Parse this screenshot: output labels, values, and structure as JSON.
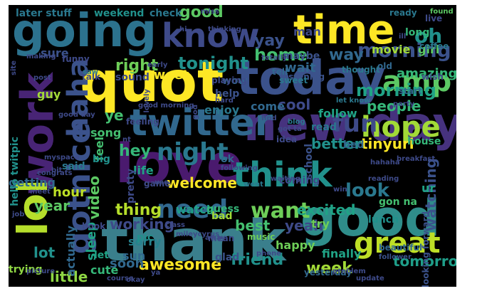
{
  "words": [
    {
      "text": "thank",
      "color": "#3a7f8c"
    },
    {
      "text": "good",
      "color": "#2f8d8a"
    },
    {
      "text": "love",
      "color": "#4a1a6e"
    },
    {
      "text": "new day",
      "color": "#46327e"
    },
    {
      "text": "today",
      "color": "#3b528b"
    },
    {
      "text": "quot",
      "color": "#fde725"
    },
    {
      "text": "going",
      "color": "#2c728e"
    },
    {
      "text": "time",
      "color": "#fde725"
    },
    {
      "text": "work",
      "color": "#482475"
    },
    {
      "text": "twitter",
      "color": "#31688e"
    },
    {
      "text": "know",
      "color": "#3e4a89"
    },
    {
      "text": "lol",
      "color": "#b5de2b"
    },
    {
      "text": "haha",
      "color": "#3b528b"
    },
    {
      "text": "gotnice",
      "color": "#3b528b"
    },
    {
      "text": "think",
      "color": "#21918c"
    },
    {
      "text": "great",
      "color": "#bddf26"
    },
    {
      "text": "hope",
      "color": "#a2da37"
    },
    {
      "text": "amp",
      "color": "#5cc863"
    },
    {
      "text": "fun",
      "color": "#3e4a89"
    },
    {
      "text": "need",
      "color": "#31688e"
    },
    {
      "text": "night",
      "color": "#2a788e"
    },
    {
      "text": "morning",
      "color": "#3b528b"
    },
    {
      "text": "morning",
      "color": "#20a386"
    },
    {
      "text": "oh",
      "color": "#21918c"
    },
    {
      "text": "home",
      "color": "#44bf70"
    },
    {
      "text": "want",
      "color": "#6ece58"
    },
    {
      "text": "look",
      "color": "#2a788e"
    },
    {
      "text": "good",
      "color": "#5cc863"
    },
    {
      "text": "tonight",
      "color": "#21918c"
    },
    {
      "text": "yay",
      "color": "#3b528b"
    },
    {
      "text": "way",
      "color": "#31688e"
    },
    {
      "text": "right",
      "color": "#6ece58"
    },
    {
      "text": "tweet",
      "color": "#fde725"
    },
    {
      "text": "wait",
      "color": "#31688e"
    },
    {
      "text": "amazing",
      "color": "#35b779"
    },
    {
      "text": "people",
      "color": "#35b779"
    },
    {
      "text": "follow",
      "color": "#20a386"
    },
    {
      "text": "cool",
      "color": "#3e4a89"
    },
    {
      "text": "come",
      "color": "#31688e"
    },
    {
      "text": "better",
      "color": "#21918c"
    },
    {
      "text": "tinyurl",
      "color": "#fde725"
    },
    {
      "text": "hey",
      "color": "#35b779"
    },
    {
      "text": "ye",
      "color": "#44bf70"
    },
    {
      "text": "welcome",
      "color": "#fde725"
    },
    {
      "text": "life",
      "color": "#20a386"
    },
    {
      "text": "video",
      "color": "#5cc863"
    },
    {
      "text": "thing",
      "color": "#b5de2b"
    },
    {
      "text": "working",
      "color": "#3e4a89"
    },
    {
      "text": "best",
      "color": "#44bf70"
    },
    {
      "text": "yeah",
      "color": "#3e4a89"
    },
    {
      "text": "excited",
      "color": "#20a386"
    },
    {
      "text": "week",
      "color": "#a2da37"
    },
    {
      "text": "tomorrow",
      "color": "#1f9e89"
    },
    {
      "text": "watching",
      "color": "#3b528b"
    },
    {
      "text": "friend",
      "color": "#21918c"
    },
    {
      "text": "awesome",
      "color": "#fde725"
    },
    {
      "text": "soon",
      "color": "#31688e"
    },
    {
      "text": "little",
      "color": "#8fd744"
    },
    {
      "text": "cute",
      "color": "#35b779"
    },
    {
      "text": "year",
      "color": "#5cc863"
    },
    {
      "text": "lot",
      "color": "#21918c"
    },
    {
      "text": "hour",
      "color": "#bddf26"
    },
    {
      "text": "getting",
      "color": "#31688e"
    },
    {
      "text": "sleep",
      "color": "#20a386"
    },
    {
      "text": "sorry",
      "color": "#26828e"
    },
    {
      "text": "sun",
      "color": "#31688e"
    },
    {
      "text": "watch",
      "color": "#1f9e89"
    },
    {
      "text": "pic",
      "color": "#21918c"
    },
    {
      "text": "later stuff",
      "color": "#2a788e"
    },
    {
      "text": "weekend",
      "color": "#21918c"
    },
    {
      "text": "check",
      "color": "#2a788e"
    },
    {
      "text": "movie",
      "color": "#a2da37"
    },
    {
      "text": "long",
      "color": "#35b779"
    },
    {
      "text": "girl",
      "color": "#5cc863"
    },
    {
      "text": "man",
      "color": "#3e4a89"
    },
    {
      "text": "sure",
      "color": "#3b528b"
    },
    {
      "text": "guy",
      "color": "#a2da37"
    },
    {
      "text": "enjoy",
      "color": "#2a788e"
    },
    {
      "text": "help",
      "color": "#3b528b"
    },
    {
      "text": "wow",
      "color": "#31688e"
    },
    {
      "text": "bad",
      "color": "#a2da37"
    },
    {
      "text": "ok",
      "color": "#31688e"
    },
    {
      "text": "gon na",
      "color": "#44bf70"
    },
    {
      "text": "ur",
      "color": "#20a386"
    },
    {
      "text": "happy",
      "color": "#6ece58"
    },
    {
      "text": "try",
      "color": "#6ece58"
    },
    {
      "text": "finally",
      "color": "#20a386"
    },
    {
      "text": "actually",
      "color": "#31688e"
    },
    {
      "text": "trying",
      "color": "#8fd744"
    },
    {
      "text": "coffee",
      "color": "#2a788e"
    },
    {
      "text": "house",
      "color": "#35b779"
    },
    {
      "text": "ready",
      "color": "#2a788e"
    },
    {
      "text": "lunch",
      "color": "#21918c"
    },
    {
      "text": "bed",
      "color": "#31688e"
    },
    {
      "text": "song",
      "color": "#44bf70"
    },
    {
      "text": "feel",
      "color": "#44bf70"
    },
    {
      "text": "big",
      "color": "#21918c"
    },
    {
      "text": "hello twitpic",
      "color": "#21918c"
    },
    {
      "text": "school",
      "color": "#3b528b"
    },
    {
      "text": "guess",
      "color": "#35b779"
    },
    {
      "text": "music",
      "color": "#6ece58"
    },
    {
      "text": "glad",
      "color": "#3b528b"
    },
    {
      "text": "let",
      "color": "#20a386"
    },
    {
      "text": "pretty",
      "color": "#3e4a89"
    },
    {
      "text": "wish",
      "color": "#3e4a89"
    },
    {
      "text": "start",
      "color": "#31688e"
    },
    {
      "text": "looking forward",
      "color": "#3b528b"
    },
    {
      "text": "yesterday",
      "color": "#31688e"
    },
    {
      "text": "beautiful",
      "color": "#31688e"
    },
    {
      "text": "follower",
      "color": "#3b528b"
    },
    {
      "text": "maybe",
      "color": "#3b528b"
    },
    {
      "text": "listening",
      "color": "#3b528b"
    },
    {
      "text": "sound",
      "color": "#3e4a89"
    },
    {
      "text": "game",
      "color": "#3e4a89"
    },
    {
      "text": "mean",
      "color": "#3e4a89"
    },
    {
      "text": "book",
      "color": "#3e4a89"
    },
    {
      "text": "idea",
      "color": "#3e4a89"
    },
    {
      "text": "read",
      "color": "#2a788e"
    },
    {
      "text": "coming",
      "color": "#3e4a89"
    },
    {
      "text": "live",
      "color": "#3e4a89"
    },
    {
      "text": "found",
      "color": "#5cc863"
    },
    {
      "text": "funny",
      "color": "#3e4a89"
    },
    {
      "text": "thought",
      "color": "#2a788e"
    },
    {
      "text": "old",
      "color": "#31688e"
    },
    {
      "text": "tell",
      "color": "#31688e"
    },
    {
      "text": "talk",
      "color": "#3e4a89"
    },
    {
      "text": "saw",
      "color": "#2a788e"
    },
    {
      "text": "let know",
      "color": "#2a788e"
    },
    {
      "text": "party",
      "color": "#3e4a89"
    },
    {
      "text": "playing",
      "color": "#3e4a89"
    },
    {
      "text": "sweet",
      "color": "#2a788e"
    },
    {
      "text": "hard",
      "color": "#3e4a89"
    },
    {
      "text": "feeling",
      "color": "#3e4a89"
    },
    {
      "text": "find",
      "color": "#3e4a89"
    },
    {
      "text": "blog",
      "color": "#2a788e"
    },
    {
      "text": "waiting",
      "color": "#3e4a89"
    },
    {
      "text": "win",
      "color": "#3e4a89"
    },
    {
      "text": "went",
      "color": "#2a788e"
    },
    {
      "text": "use",
      "color": "#3e4a89"
    },
    {
      "text": "class",
      "color": "#3e4a89"
    },
    {
      "text": "nt",
      "color": "#3e4a89"
    },
    {
      "text": "said",
      "color": "#2a788e"
    },
    {
      "text": "job",
      "color": "#3e4a89"
    },
    {
      "text": "phone",
      "color": "#3e4a89"
    },
    {
      "text": "update",
      "color": "#3e4a89"
    },
    {
      "text": "ya",
      "color": "#3e4a89"
    },
    {
      "text": "miss",
      "color": "#3e4a89"
    },
    {
      "text": "making",
      "color": "#3e4a89"
    },
    {
      "text": "thinking",
      "color": "#3e4a89"
    },
    {
      "text": "hi",
      "color": "#3e4a89"
    },
    {
      "text": "lovely",
      "color": "#3e4a89"
    },
    {
      "text": "post",
      "color": "#3e4a89"
    },
    {
      "text": "reading",
      "color": "#3e4a89"
    },
    {
      "text": "hahaha",
      "color": "#3e4a89"
    },
    {
      "text": "following",
      "color": "#3e4a89"
    },
    {
      "text": "picture",
      "color": "#3e4a89"
    },
    {
      "text": "bit",
      "color": "#3e4a89"
    },
    {
      "text": "meet",
      "color": "#3e4a89"
    },
    {
      "text": "away",
      "color": "#3e4a89"
    },
    {
      "text": "mileycyrus",
      "color": "#3e4a89"
    },
    {
      "text": "course",
      "color": "#3e4a89"
    },
    {
      "text": "okay",
      "color": "#3e4a89"
    },
    {
      "text": "problem",
      "color": "#3e4a89"
    },
    {
      "text": "totally",
      "color": "#3e4a89"
    },
    {
      "text": "early",
      "color": "#3e4a89"
    },
    {
      "text": "site",
      "color": "#3e4a89"
    },
    {
      "text": "myspace",
      "color": "#3e4a89"
    },
    {
      "text": "congrats",
      "color": "#3e4a89"
    },
    {
      "text": "god",
      "color": "#3e4a89"
    },
    {
      "text": "got ta",
      "color": "#3e4a89"
    },
    {
      "text": "good morning",
      "color": "#3e4a89"
    },
    {
      "text": "good day",
      "color": "#3e4a89"
    },
    {
      "text": "breakfast",
      "color": "#3e4a89"
    },
    {
      "text": "ill",
      "color": "#3e4a89"
    }
  ]
}
